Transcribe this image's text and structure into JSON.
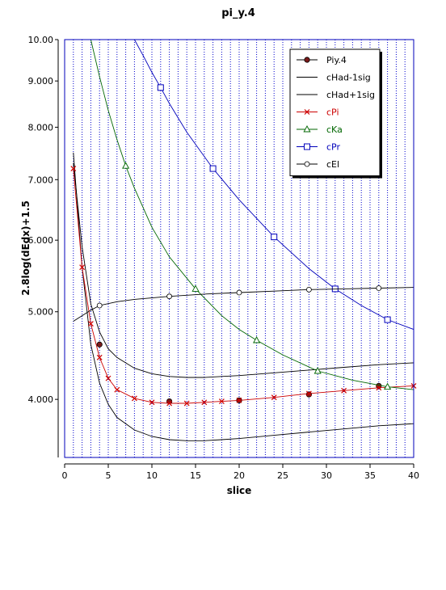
{
  "chart_data": {
    "type": "line",
    "title": "pi_y.4",
    "xlabel": "slice",
    "ylabel": "2.8log(dEdx)+1.5",
    "xlim": [
      0,
      40
    ],
    "ylim": [
      3.45,
      10.0
    ],
    "y_scale": "log",
    "x_ticks": [
      0,
      5,
      10,
      15,
      20,
      25,
      30,
      35,
      40
    ],
    "x_tick_labels": [
      "0",
      "5",
      "10",
      "15",
      "20",
      "25",
      "30",
      "35",
      "40"
    ],
    "y_ticks": [
      4.0,
      5.0,
      6.0,
      7.0,
      8.0,
      9.0,
      10.0
    ],
    "y_tick_labels": [
      "4.000",
      "5.000",
      "6.000",
      "7.000",
      "8.000",
      "9.000",
      "10.00"
    ],
    "grid": "vertical dotted blue lines at every integer slice",
    "legend_position": "top-right",
    "series": [
      {
        "name": "Piy.4",
        "color": "#000000",
        "marker": "filled-circle",
        "marker_color": "#7a1a1a",
        "line": false,
        "x": [
          4,
          12,
          20,
          28,
          36
        ],
        "y": [
          4.6,
          3.98,
          3.99,
          4.05,
          4.14
        ]
      },
      {
        "name": "cHad-1sig",
        "color": "#000000",
        "marker": "none",
        "x": [
          1,
          2,
          3,
          4,
          5,
          6,
          8,
          10,
          12,
          14,
          15,
          16,
          18,
          20,
          24,
          28,
          32,
          36,
          40
        ],
        "y": [
          7.5,
          5.6,
          4.6,
          4.17,
          3.95,
          3.82,
          3.7,
          3.64,
          3.61,
          3.6,
          3.6,
          3.6,
          3.61,
          3.62,
          3.65,
          3.68,
          3.71,
          3.74,
          3.76
        ]
      },
      {
        "name": "cHad+1sig",
        "color": "#000000",
        "marker": "none",
        "x": [
          1,
          2,
          3,
          4,
          5,
          6,
          8,
          10,
          12,
          14,
          15,
          16,
          18,
          20,
          24,
          28,
          32,
          36,
          40
        ],
        "y": [
          7.3,
          5.9,
          5.1,
          4.75,
          4.55,
          4.45,
          4.33,
          4.27,
          4.24,
          4.23,
          4.23,
          4.23,
          4.24,
          4.25,
          4.28,
          4.31,
          4.34,
          4.37,
          4.39
        ]
      },
      {
        "name": "cPi",
        "color": "#cc0000",
        "marker": "x",
        "line": true,
        "x": [
          1,
          2,
          3,
          4,
          5,
          6,
          8,
          10,
          12,
          14,
          16,
          18,
          20,
          24,
          28,
          32,
          36,
          40
        ],
        "y": [
          7.2,
          5.6,
          4.85,
          4.45,
          4.22,
          4.1,
          4.01,
          3.97,
          3.96,
          3.96,
          3.97,
          3.98,
          3.99,
          4.02,
          4.06,
          4.09,
          4.12,
          4.14
        ]
      },
      {
        "name": "cKa",
        "color": "#006600",
        "marker": "triangle",
        "line": true,
        "x": [
          3,
          4,
          5,
          6,
          7,
          8,
          10,
          12,
          15,
          18,
          20,
          22,
          25,
          29,
          33,
          37,
          40
        ],
        "y": [
          10.0,
          9.1,
          8.35,
          7.75,
          7.25,
          6.85,
          6.2,
          5.75,
          5.3,
          4.95,
          4.78,
          4.65,
          4.48,
          4.3,
          4.2,
          4.13,
          4.1
        ],
        "marker_x": [
          7,
          15,
          22,
          29,
          37
        ],
        "marker_y": [
          7.25,
          5.3,
          4.65,
          4.3,
          4.13
        ]
      },
      {
        "name": "cPr",
        "color": "#0000bb",
        "marker": "square",
        "line": true,
        "x": [
          8,
          9,
          10,
          11,
          12,
          14,
          17,
          20,
          24,
          28,
          31,
          34,
          37,
          40
        ],
        "y": [
          10.0,
          9.6,
          9.2,
          8.85,
          8.5,
          7.9,
          7.2,
          6.65,
          6.05,
          5.58,
          5.3,
          5.08,
          4.9,
          4.78
        ],
        "marker_x": [
          11,
          17,
          24,
          31,
          37
        ],
        "marker_y": [
          8.85,
          7.2,
          6.05,
          5.3,
          4.9
        ]
      },
      {
        "name": "cEl",
        "color": "#000000",
        "marker": "open-circle",
        "line": true,
        "x": [
          1,
          2,
          3,
          4,
          6,
          8,
          10,
          12,
          16,
          20,
          24,
          28,
          32,
          36,
          40
        ],
        "y": [
          4.88,
          4.95,
          5.02,
          5.08,
          5.13,
          5.16,
          5.18,
          5.2,
          5.23,
          5.25,
          5.27,
          5.29,
          5.3,
          5.31,
          5.32
        ],
        "marker_x": [
          4,
          12,
          20,
          28,
          36
        ],
        "marker_y": [
          5.08,
          5.2,
          5.25,
          5.29,
          5.31
        ]
      }
    ]
  }
}
